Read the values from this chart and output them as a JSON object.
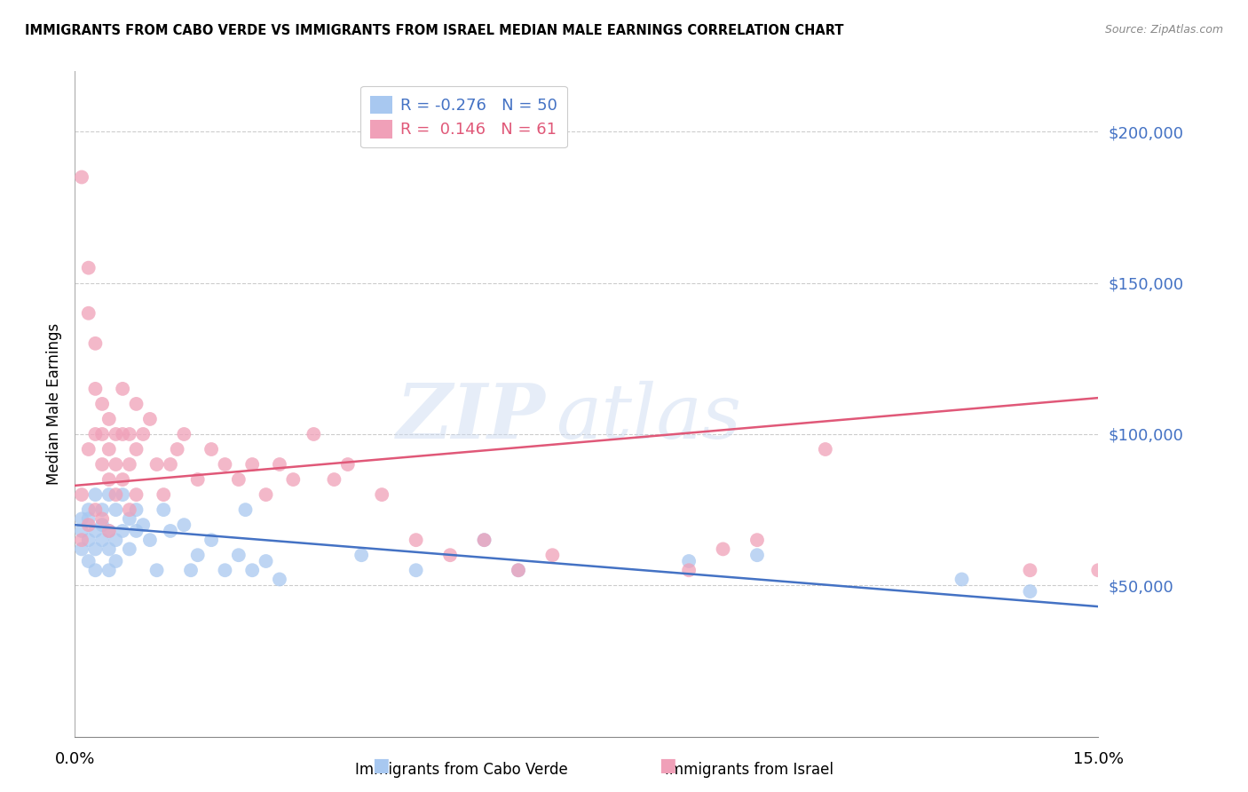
{
  "title": "IMMIGRANTS FROM CABO VERDE VS IMMIGRANTS FROM ISRAEL MEDIAN MALE EARNINGS CORRELATION CHART",
  "source": "Source: ZipAtlas.com",
  "ylabel": "Median Male Earnings",
  "xlim": [
    0.0,
    0.15
  ],
  "ylim": [
    0,
    220000
  ],
  "yticks": [
    50000,
    100000,
    150000,
    200000
  ],
  "ytick_labels": [
    "$50,000",
    "$100,000",
    "$150,000",
    "$200,000"
  ],
  "legend_label_cabo": "Immigrants from Cabo Verde",
  "legend_label_israel": "Immigrants from Israel",
  "cabo_color": "#a8c8f0",
  "israel_color": "#f0a0b8",
  "cabo_line_color": "#4472c4",
  "israel_line_color": "#e05878",
  "cabo_R": -0.276,
  "cabo_N": 50,
  "israel_R": 0.146,
  "israel_N": 61,
  "cabo_line_x0": 0.0,
  "cabo_line_y0": 70000,
  "cabo_line_x1": 0.15,
  "cabo_line_y1": 43000,
  "israel_line_x0": 0.0,
  "israel_line_y0": 83000,
  "israel_line_x1": 0.15,
  "israel_line_y1": 112000,
  "cabo_x": [
    0.001,
    0.001,
    0.001,
    0.002,
    0.002,
    0.002,
    0.002,
    0.003,
    0.003,
    0.003,
    0.003,
    0.004,
    0.004,
    0.004,
    0.005,
    0.005,
    0.005,
    0.005,
    0.006,
    0.006,
    0.006,
    0.007,
    0.007,
    0.008,
    0.008,
    0.009,
    0.009,
    0.01,
    0.011,
    0.012,
    0.013,
    0.014,
    0.016,
    0.017,
    0.018,
    0.02,
    0.022,
    0.024,
    0.025,
    0.026,
    0.028,
    0.03,
    0.042,
    0.05,
    0.06,
    0.065,
    0.09,
    0.1,
    0.13,
    0.14
  ],
  "cabo_y": [
    68000,
    72000,
    62000,
    75000,
    65000,
    72000,
    58000,
    80000,
    68000,
    62000,
    55000,
    75000,
    65000,
    70000,
    80000,
    68000,
    55000,
    62000,
    75000,
    65000,
    58000,
    80000,
    68000,
    72000,
    62000,
    68000,
    75000,
    70000,
    65000,
    55000,
    75000,
    68000,
    70000,
    55000,
    60000,
    65000,
    55000,
    60000,
    75000,
    55000,
    58000,
    52000,
    60000,
    55000,
    65000,
    55000,
    58000,
    60000,
    52000,
    48000
  ],
  "israel_x": [
    0.001,
    0.001,
    0.001,
    0.002,
    0.002,
    0.002,
    0.002,
    0.003,
    0.003,
    0.003,
    0.003,
    0.004,
    0.004,
    0.004,
    0.004,
    0.005,
    0.005,
    0.005,
    0.005,
    0.006,
    0.006,
    0.006,
    0.007,
    0.007,
    0.007,
    0.008,
    0.008,
    0.008,
    0.009,
    0.009,
    0.009,
    0.01,
    0.011,
    0.012,
    0.013,
    0.014,
    0.015,
    0.016,
    0.018,
    0.02,
    0.022,
    0.024,
    0.026,
    0.028,
    0.03,
    0.032,
    0.035,
    0.038,
    0.04,
    0.045,
    0.05,
    0.055,
    0.06,
    0.065,
    0.07,
    0.09,
    0.095,
    0.1,
    0.11,
    0.14,
    0.15
  ],
  "israel_y": [
    185000,
    80000,
    65000,
    155000,
    140000,
    95000,
    70000,
    130000,
    115000,
    100000,
    75000,
    110000,
    100000,
    90000,
    72000,
    105000,
    95000,
    85000,
    68000,
    100000,
    90000,
    80000,
    115000,
    100000,
    85000,
    100000,
    90000,
    75000,
    110000,
    95000,
    80000,
    100000,
    105000,
    90000,
    80000,
    90000,
    95000,
    100000,
    85000,
    95000,
    90000,
    85000,
    90000,
    80000,
    90000,
    85000,
    100000,
    85000,
    90000,
    80000,
    65000,
    60000,
    65000,
    55000,
    60000,
    55000,
    62000,
    65000,
    95000,
    55000,
    55000
  ]
}
